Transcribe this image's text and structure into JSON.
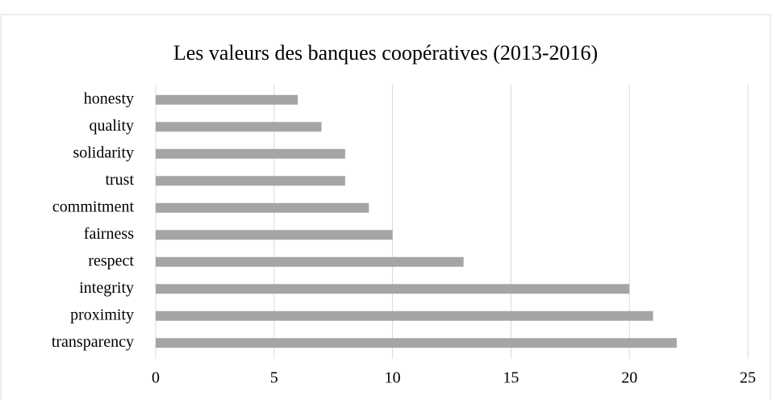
{
  "chart_data": {
    "type": "barh",
    "title": "Les valeurs des banques coopératives (2013-2016)",
    "categories": [
      "honesty",
      "quality",
      "solidarity",
      "trust",
      "commitment",
      "fairness",
      "respect",
      "integrity",
      "proximity",
      "transparency"
    ],
    "values": [
      6,
      7,
      8,
      8,
      9,
      10,
      13,
      20,
      21,
      22
    ],
    "color": "#a5a5a5",
    "xlim": [
      0,
      25
    ],
    "xticks": [
      0,
      5,
      10,
      15,
      20,
      25
    ],
    "grid": true
  }
}
